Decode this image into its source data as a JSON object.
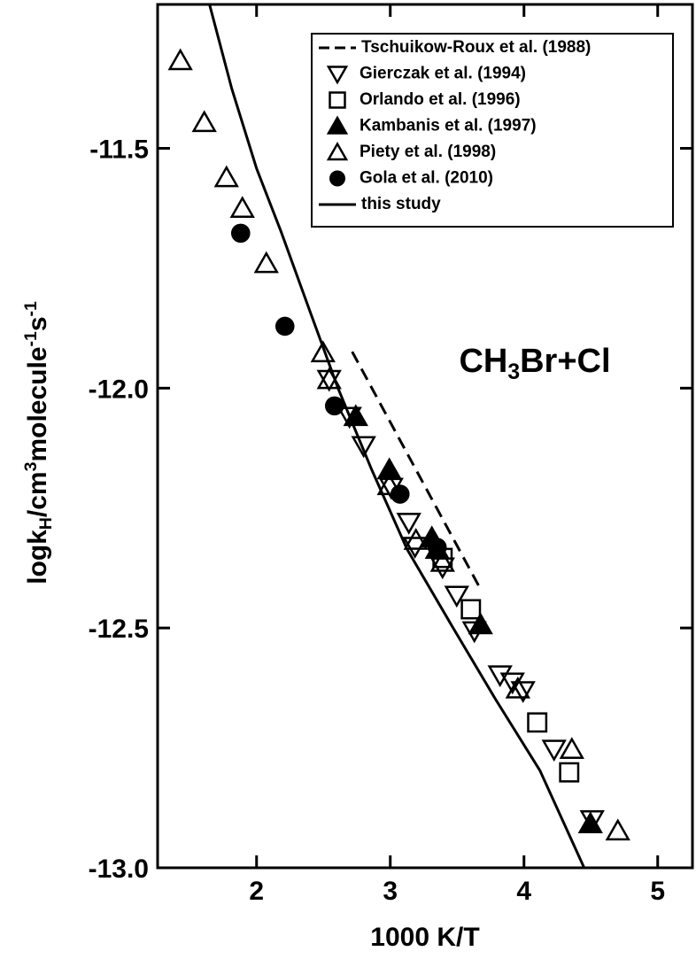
{
  "chart_data": {
    "type": "scatter",
    "x_label": "1000 K/T",
    "y_label": [
      {
        "text": "logk"
      },
      {
        "text": "H",
        "script": "sub"
      },
      {
        "text": "/cm"
      },
      {
        "text": "3",
        "script": "sup"
      },
      {
        "text": "molecule"
      },
      {
        "text": "-1",
        "script": "sup"
      },
      {
        "text": "s"
      },
      {
        "text": "-1",
        "script": "sup"
      }
    ],
    "annotation": [
      {
        "text": "CH"
      },
      {
        "text": "3",
        "script": "sub"
      },
      {
        "text": "Br+Cl"
      }
    ],
    "xlim": [
      1.26,
      5.26
    ],
    "ylim": [
      -13.0,
      -11.2
    ],
    "xticks": [
      2,
      3,
      4,
      5
    ],
    "yticks": [
      -11.5,
      {
        "value": -12,
        "label": "-12.0"
      },
      -12.5,
      {
        "value": -13,
        "label": "-13.0"
      }
    ],
    "legend": "upper right",
    "series": [
      {
        "name": "Tschuikow-Roux et al. (1988)",
        "marker": "dashed-line",
        "color": "#000000",
        "x": [
          2.715,
          3.675
        ],
        "y": [
          -11.924,
          -12.419
        ]
      },
      {
        "name": "Gierczak et al. (1994)",
        "marker": "triangle-down-open",
        "color": "#000000",
        "x": [
          2.543,
          2.695,
          2.801,
          3.007,
          3.139,
          3.185,
          3.391,
          3.497,
          3.629,
          3.821,
          3.914,
          3.993,
          4.225,
          4.51
        ],
        "y": [
          -11.982,
          -12.059,
          -12.12,
          -12.207,
          -12.28,
          -12.33,
          -12.373,
          -12.432,
          -12.506,
          -12.598,
          -12.613,
          -12.631,
          -12.753,
          -12.9
        ]
      },
      {
        "name": "Orlando et al. (1996)",
        "marker": "square-open",
        "color": "#000000",
        "x": [
          3.391,
          3.603,
          4.099,
          4.338
        ],
        "y": [
          -12.354,
          -12.461,
          -12.697,
          -12.801
        ]
      },
      {
        "name": "Kambanis et al. (1997)",
        "marker": "triangle-up-filled",
        "color": "#000000",
        "x": [
          2.742,
          2.993,
          3.311,
          3.351,
          3.675,
          4.497
        ],
        "y": [
          -12.059,
          -12.17,
          -12.312,
          -12.336,
          -12.493,
          -12.908
        ]
      },
      {
        "name": "Piety et al. (1998)",
        "marker": "triangle-up-open",
        "color": "#000000",
        "x": [
          1.43,
          1.609,
          1.775,
          1.894,
          2.073,
          2.497,
          2.543,
          2.993,
          3.192,
          3.391,
          3.954,
          4.358,
          4.702
        ],
        "y": [
          -11.317,
          -11.446,
          -11.561,
          -11.625,
          -11.74,
          -11.926,
          -11.982,
          -12.203,
          -12.317,
          -12.363,
          -12.627,
          -12.753,
          -12.923
        ]
      },
      {
        "name": "Gola et al. (2010)",
        "marker": "circle-filled",
        "color": "#000000",
        "x": [
          1.881,
          2.212,
          2.583,
          3.073,
          3.351
        ],
        "y": [
          -11.677,
          -11.871,
          -12.037,
          -12.221,
          -12.332
        ]
      },
      {
        "name": "this study",
        "marker": "solid-line",
        "color": "#000000",
        "x": [
          1.649,
          1.815,
          2.0,
          2.185,
          2.397,
          2.609,
          2.861,
          3.126,
          3.47,
          3.788,
          4.119,
          4.45
        ],
        "y": [
          -11.201,
          -11.376,
          -11.542,
          -11.675,
          -11.838,
          -12.0,
          -12.17,
          -12.336,
          -12.5,
          -12.649,
          -12.797,
          -13.0
        ]
      }
    ]
  }
}
